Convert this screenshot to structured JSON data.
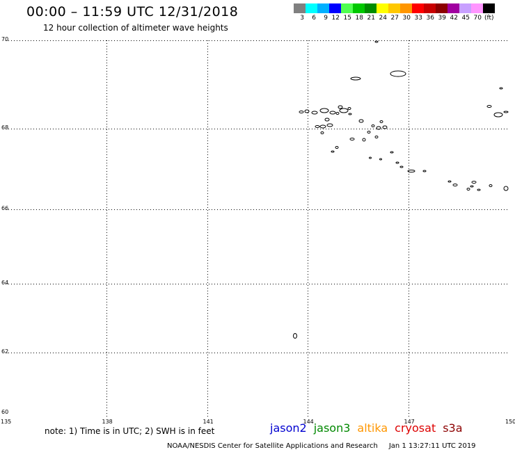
{
  "title": "00:00 – 11:59 UTC 12/31/2018",
  "subtitle": "12 hour collection of altimeter wave heights",
  "colorbar": {
    "swatches": [
      {
        "color": "#808080",
        "label": "3"
      },
      {
        "color": "#00ffff",
        "label": "6"
      },
      {
        "color": "#00b0ff",
        "label": "9"
      },
      {
        "color": "#0000ff",
        "label": "12"
      },
      {
        "color": "#50ff50",
        "label": "15"
      },
      {
        "color": "#00c800",
        "label": "18"
      },
      {
        "color": "#008c00",
        "label": "21"
      },
      {
        "color": "#ffff00",
        "label": "24"
      },
      {
        "color": "#ffc800",
        "label": "27"
      },
      {
        "color": "#ff9600",
        "label": "30"
      },
      {
        "color": "#ff0000",
        "label": "33"
      },
      {
        "color": "#c80000",
        "label": "36"
      },
      {
        "color": "#8c0000",
        "label": "39"
      },
      {
        "color": "#a000a0",
        "label": "42"
      },
      {
        "color": "#c8a0ff",
        "label": "45"
      },
      {
        "color": "#ff96ff",
        "label": "70"
      },
      {
        "color": "#000000",
        "label": "(ft)"
      }
    ]
  },
  "map": {
    "lon_range": [
      135,
      150
    ],
    "lat_range": [
      60,
      70
    ],
    "x_ticks": [
      {
        "value": 135,
        "label": "135"
      },
      {
        "value": 138,
        "label": "138"
      },
      {
        "value": 141,
        "label": "141"
      },
      {
        "value": 144,
        "label": "144"
      },
      {
        "value": 147,
        "label": "147"
      },
      {
        "value": 150,
        "label": "150"
      }
    ],
    "y_ticks": [
      {
        "value": 70,
        "label": "70"
      },
      {
        "value": 68,
        "label": "68"
      },
      {
        "value": 66,
        "label": "66"
      },
      {
        "value": 64,
        "label": "64"
      },
      {
        "value": 62,
        "label": "62"
      },
      {
        "value": 60,
        "label": "60"
      }
    ],
    "gridlines": "dotted"
  },
  "note": "note: 1) Time is in UTC; 2) SWH is in feet",
  "satellites": [
    {
      "name": "jason2",
      "color": "#0000d0"
    },
    {
      "name": "jason3",
      "color": "#008800"
    },
    {
      "name": "altika",
      "color": "#ff9600"
    },
    {
      "name": "cryosat",
      "color": "#dd0000"
    },
    {
      "name": "s3a",
      "color": "#8c0000"
    }
  ],
  "footer": {
    "credit": "NOAA/NESDIS Center for Satellite Applications and Research",
    "timestamp": "Jan  1 13:27:11 UTC 2019"
  }
}
